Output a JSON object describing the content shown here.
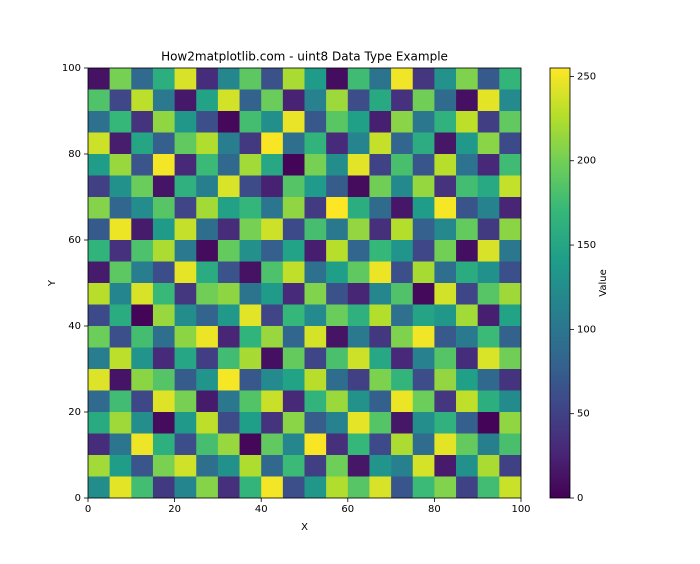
{
  "chart_data": {
    "type": "heatmap",
    "title": "How2matplotlib.com - uint8 Data Type Example",
    "x_label": "X",
    "y_label": "Y",
    "colorbar_label": "Value",
    "xlim": [
      0,
      100
    ],
    "ylim": [
      0,
      100
    ],
    "xticks": [
      0,
      20,
      40,
      60,
      80,
      100
    ],
    "yticks": [
      0,
      20,
      40,
      60,
      80,
      100
    ],
    "clim": [
      0,
      255
    ],
    "cticks": [
      0,
      50,
      100,
      150,
      200,
      250
    ],
    "colormap": [
      "#440154",
      "#482878",
      "#3e4989",
      "#31688e",
      "#26828e",
      "#1f9e89",
      "#35b779",
      "#6ece58",
      "#b5de2b",
      "#fde725"
    ],
    "z": [
      [
        12,
        201,
        87,
        160,
        240,
        33,
        118,
        190,
        64,
        222,
        140,
        9,
        175,
        98,
        250,
        41,
        130,
        205,
        72,
        168
      ],
      [
        183,
        55,
        229,
        104,
        17,
        147,
        238,
        80,
        196,
        25,
        112,
        217,
        60,
        154,
        36,
        199,
        88,
        11,
        245,
        121
      ],
      [
        95,
        170,
        38,
        212,
        135,
        62,
        5,
        178,
        126,
        247,
        70,
        188,
        144,
        22,
        209,
        101,
        163,
        230,
        47,
        192
      ],
      [
        236,
        20,
        150,
        77,
        192,
        225,
        108,
        43,
        253,
        93,
        166,
        31,
        115,
        233,
        83,
        158,
        15,
        137,
        209,
        58
      ],
      [
        141,
        215,
        68,
        251,
        29,
        173,
        86,
        219,
        152,
        3,
        201,
        124,
        244,
        51,
        180,
        69,
        227,
        96,
        28,
        175
      ],
      [
        49,
        128,
        196,
        14,
        162,
        110,
        241,
        59,
        24,
        186,
        138,
        74,
        7,
        199,
        120,
        214,
        38,
        177,
        153,
        232
      ],
      [
        207,
        84,
        123,
        187,
        53,
        220,
        145,
        169,
        99,
        212,
        45,
        255,
        159,
        88,
        16,
        141,
        252,
        67,
        114,
        26
      ],
      [
        72,
        248,
        19,
        139,
        233,
        90,
        32,
        201,
        236,
        58,
        179,
        102,
        213,
        35,
        226,
        79,
        119,
        193,
        44,
        210
      ],
      [
        165,
        36,
        182,
        223,
        104,
        8,
        193,
        127,
        77,
        146,
        21,
        227,
        83,
        170,
        133,
        55,
        200,
        10,
        240,
        101
      ],
      [
        19,
        190,
        109,
        61,
        246,
        156,
        66,
        12,
        182,
        231,
        95,
        143,
        191,
        248,
        63,
        221,
        92,
        157,
        129,
        63
      ],
      [
        228,
        116,
        240,
        171,
        40,
        199,
        211,
        98,
        139,
        30,
        206,
        64,
        27,
        117,
        184,
        6,
        238,
        54,
        187,
        218
      ],
      [
        58,
        157,
        2,
        215,
        124,
        81,
        136,
        244,
        53,
        170,
        121,
        196,
        162,
        226,
        94,
        148,
        135,
        219,
        22,
        147
      ],
      [
        197,
        63,
        178,
        93,
        210,
        248,
        26,
        165,
        215,
        84,
        239,
        13,
        104,
        42,
        205,
        250,
        71,
        105,
        173,
        80
      ],
      [
        108,
        229,
        133,
        30,
        151,
        47,
        176,
        221,
        11,
        194,
        54,
        181,
        236,
        152,
        28,
        112,
        186,
        33,
        241,
        199
      ],
      [
        242,
        14,
        210,
        186,
        74,
        132,
        252,
        70,
        121,
        147,
        228,
        90,
        49,
        204,
        167,
        60,
        213,
        144,
        85,
        39
      ],
      [
        87,
        176,
        56,
        243,
        202,
        19,
        101,
        185,
        234,
        29,
        166,
        216,
        130,
        78,
        248,
        197,
        40,
        231,
        160,
        122
      ],
      [
        155,
        218,
        125,
        8,
        137,
        230,
        59,
        143,
        38,
        209,
        75,
        113,
        246,
        186,
        15,
        125,
        163,
        77,
        3,
        212
      ],
      [
        33,
        99,
        249,
        161,
        61,
        179,
        215,
        4,
        192,
        118,
        253,
        34,
        170,
        57,
        223,
        89,
        245,
        194,
        110,
        180
      ],
      [
        219,
        141,
        68,
        203,
        237,
        93,
        128,
        224,
        86,
        173,
        48,
        198,
        15,
        133,
        111,
        239,
        18,
        129,
        222,
        50
      ],
      [
        124,
        245,
        177,
        44,
        116,
        208,
        35,
        167,
        251,
        62,
        135,
        225,
        187,
        240,
        69,
        173,
        206,
        51,
        176,
        235
      ]
    ]
  }
}
